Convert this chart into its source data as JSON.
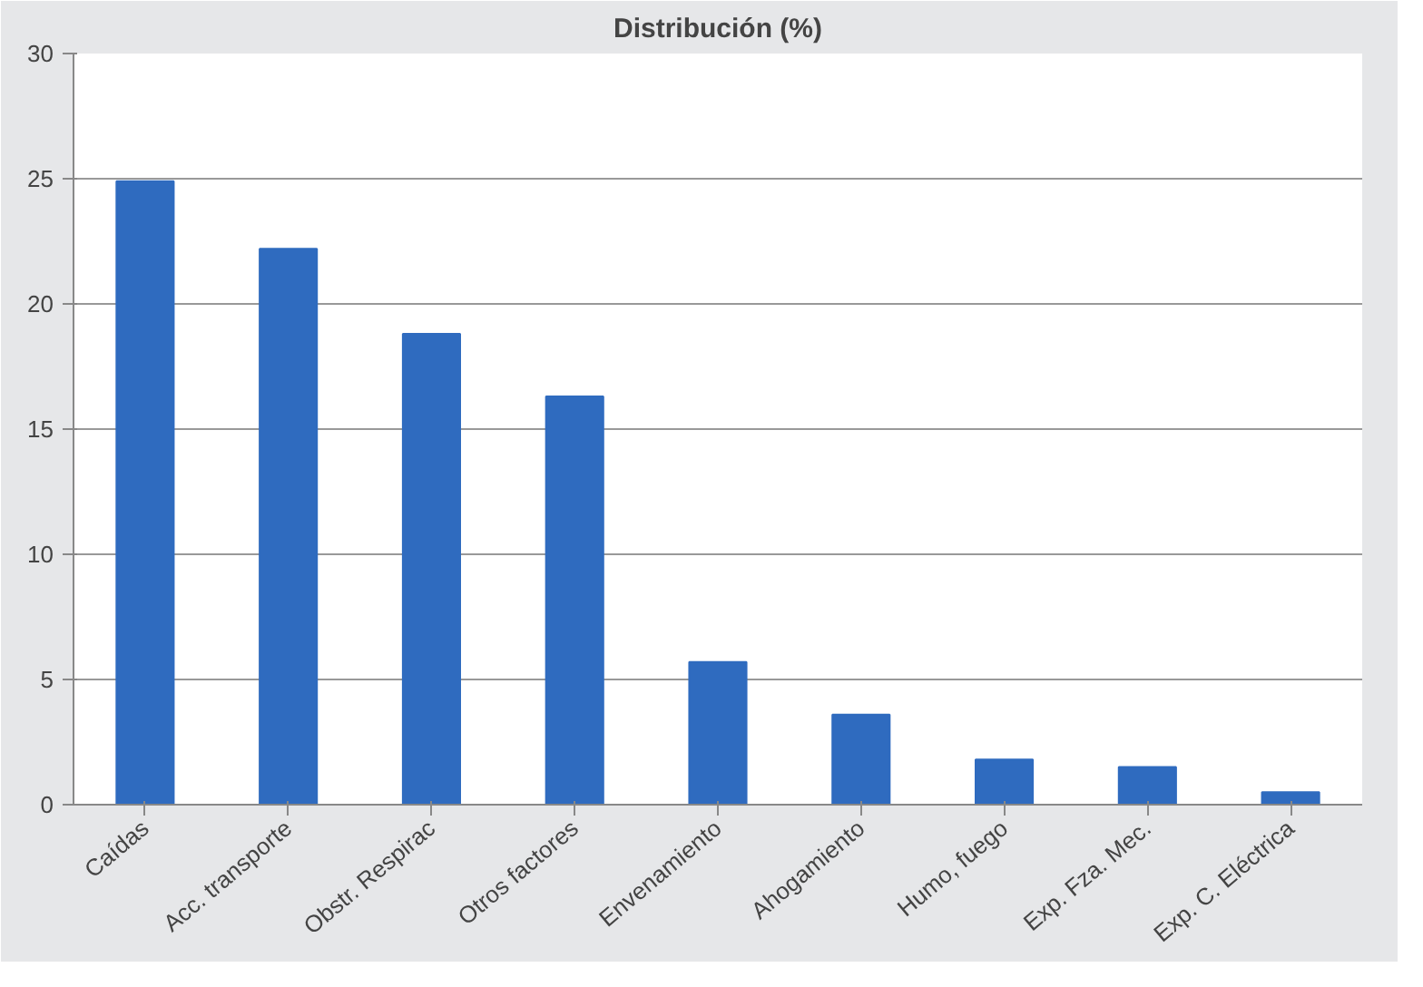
{
  "chart_data": {
    "type": "bar",
    "title": "Distribución (%)",
    "categories": [
      "Caídas",
      "Acc. transporte",
      "Obstr. Respirac",
      "Otros factores",
      "Envenamiento",
      "Ahogamiento",
      "Humo, fuego",
      "Exp. Fza. Mec.",
      "Exp. C. Eléctrica"
    ],
    "values": [
      24.9,
      22.2,
      18.8,
      16.3,
      5.7,
      3.6,
      1.8,
      1.5,
      0.5
    ],
    "color": "#2f6bbf",
    "ylim": [
      0,
      30
    ],
    "yticks": [
      0,
      5,
      10,
      15,
      20,
      25,
      30
    ],
    "grid": "y"
  }
}
